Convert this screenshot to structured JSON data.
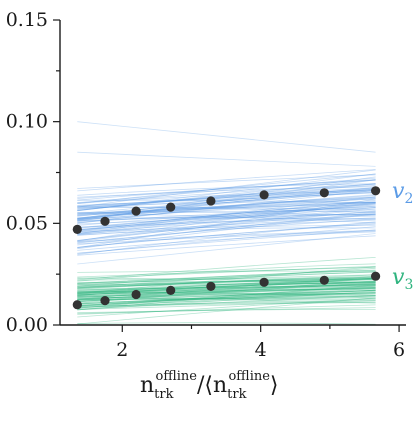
{
  "chart_data": {
    "type": "scatter",
    "title": "",
    "xlabel": {
      "n": "n",
      "sub": "trk",
      "sup": "offline",
      "slash": "/",
      "langle": "⟨",
      "rangle": "⟩"
    },
    "ylabel": "",
    "xlim": [
      1.1,
      6.1
    ],
    "ylim": [
      0.0,
      0.15
    ],
    "xticks": [
      2,
      4,
      6
    ],
    "xtick_labels": [
      "2",
      "4",
      "6"
    ],
    "yticks": [
      0.0,
      0.05,
      0.1,
      0.15
    ],
    "ytick_labels": [
      "0.00",
      "0.05",
      "0.10",
      "0.15"
    ],
    "grid": false,
    "colors": {
      "v2": "#5b9be6",
      "v3": "#2fb47f",
      "points": "#333333",
      "axis": "#1a1a1a"
    },
    "series_labels": [
      {
        "id": "v2",
        "base": "v",
        "sub": "2",
        "color": "#5b9be6"
      },
      {
        "id": "v3",
        "base": "v",
        "sub": "3",
        "color": "#2fb47f"
      }
    ],
    "x": [
      1.35,
      1.75,
      2.2,
      2.7,
      3.28,
      4.05,
      4.92,
      5.66
    ],
    "series": [
      {
        "id": "v2",
        "values": [
          0.047,
          0.051,
          0.056,
          0.058,
          0.061,
          0.064,
          0.065,
          0.066
        ]
      },
      {
        "id": "v3",
        "values": [
          0.01,
          0.012,
          0.015,
          0.017,
          0.019,
          0.021,
          0.022,
          0.024
        ]
      }
    ],
    "band_x_range": [
      1.35,
      5.66
    ],
    "v2_band": {
      "center_start": 0.05,
      "center_end": 0.06,
      "spread": 0.008,
      "count": 90
    },
    "v3_band": {
      "center_start": 0.015,
      "center_end": 0.02,
      "spread": 0.005,
      "count": 90
    }
  }
}
